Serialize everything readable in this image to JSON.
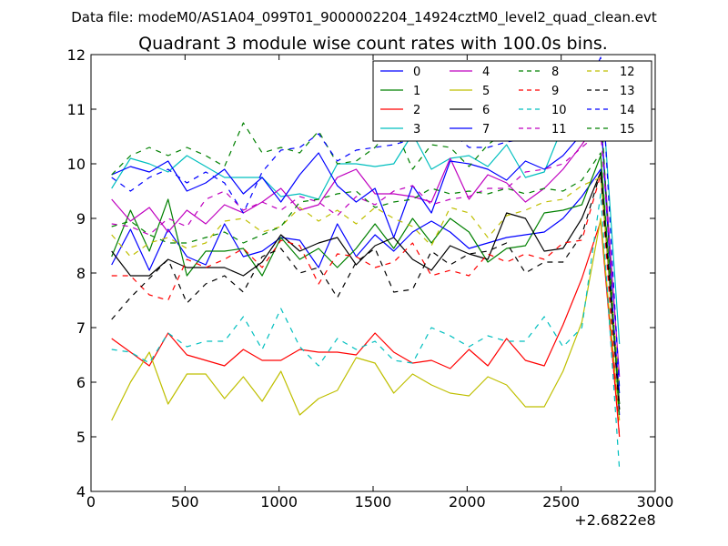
{
  "chart_data": {
    "type": "line",
    "suptitle": "Data file: modeM0/AS1A04_099T01_9000002204_14924cztM0_level2_quad_clean.evt",
    "title": "Quadrant 3 module wise count rates with 100.0s bins.",
    "xlabel": "",
    "ylabel": "",
    "x_offset_label": "+2.6822e8",
    "xlim": [
      0,
      3000
    ],
    "ylim": [
      4,
      12
    ],
    "xticks": [
      0,
      500,
      1000,
      1500,
      2000,
      2500,
      3000
    ],
    "yticks": [
      4,
      5,
      6,
      7,
      8,
      9,
      10,
      11,
      12
    ],
    "grid": false,
    "legend_position": "top-right",
    "x": [
      110,
      210,
      310,
      410,
      510,
      610,
      710,
      810,
      910,
      1010,
      1110,
      1210,
      1310,
      1410,
      1510,
      1610,
      1710,
      1810,
      1910,
      2010,
      2110,
      2210,
      2310,
      2410,
      2510,
      2610,
      2710,
      2810
    ],
    "series": [
      {
        "name": "0",
        "color": "#0000ff",
        "dash": "solid",
        "values": [
          8.15,
          8.8,
          8.05,
          8.8,
          8.3,
          8.15,
          8.9,
          8.3,
          8.4,
          8.65,
          8.6,
          8.1,
          8.9,
          8.3,
          8.7,
          8.4,
          8.75,
          8.95,
          8.75,
          8.45,
          8.55,
          8.65,
          8.7,
          8.75,
          9.0,
          9.4,
          9.9,
          5.8
        ]
      },
      {
        "name": "1",
        "color": "#008000",
        "dash": "solid",
        "values": [
          8.3,
          9.15,
          8.4,
          9.35,
          7.95,
          8.4,
          8.4,
          8.45,
          7.95,
          8.65,
          8.25,
          8.45,
          8.1,
          8.45,
          8.9,
          8.45,
          9.0,
          8.55,
          9.0,
          8.75,
          8.2,
          8.45,
          8.5,
          9.1,
          9.15,
          9.25,
          10.15,
          5.5
        ]
      },
      {
        "name": "2",
        "color": "#ff0000",
        "dash": "solid",
        "values": [
          6.8,
          6.55,
          6.3,
          6.9,
          6.5,
          6.4,
          6.3,
          6.6,
          6.4,
          6.4,
          6.6,
          6.55,
          6.55,
          6.5,
          6.9,
          6.55,
          6.35,
          6.4,
          6.25,
          6.6,
          6.3,
          6.8,
          6.4,
          6.3,
          7.05,
          7.9,
          8.95,
          5.0
        ]
      },
      {
        "name": "3",
        "color": "#00bfbf",
        "dash": "solid",
        "values": [
          9.55,
          10.1,
          10.0,
          9.85,
          10.15,
          9.95,
          9.75,
          9.75,
          9.75,
          9.4,
          9.45,
          9.35,
          10.0,
          10.0,
          9.95,
          10.0,
          10.55,
          9.9,
          10.1,
          10.15,
          9.95,
          10.35,
          9.75,
          9.85,
          10.7,
          10.55,
          11.7,
          6.7
        ]
      },
      {
        "name": "4",
        "color": "#bf00bf",
        "dash": "solid",
        "values": [
          9.35,
          8.95,
          9.2,
          8.75,
          9.15,
          8.9,
          9.25,
          9.1,
          9.3,
          9.55,
          9.15,
          9.25,
          9.75,
          9.9,
          9.45,
          9.45,
          9.4,
          9.3,
          10.1,
          9.35,
          9.8,
          9.65,
          9.3,
          9.55,
          9.9,
          10.35,
          10.85,
          6.1
        ]
      },
      {
        "name": "5",
        "color": "#bfbf00",
        "dash": "solid",
        "values": [
          5.3,
          6.0,
          6.55,
          5.6,
          6.15,
          6.15,
          5.7,
          6.1,
          5.65,
          6.2,
          5.4,
          5.7,
          5.85,
          6.45,
          6.35,
          5.8,
          6.15,
          5.95,
          5.8,
          5.75,
          6.1,
          5.95,
          5.55,
          5.55,
          6.2,
          7.1,
          9.0,
          5.3
        ]
      },
      {
        "name": "6",
        "color": "#000000",
        "dash": "solid",
        "values": [
          8.4,
          7.95,
          7.95,
          8.25,
          8.1,
          8.1,
          8.1,
          7.95,
          8.2,
          8.7,
          8.4,
          8.55,
          8.65,
          8.15,
          8.5,
          8.65,
          8.25,
          8.05,
          8.5,
          8.35,
          8.25,
          9.1,
          9.0,
          8.4,
          8.45,
          9.0,
          9.85,
          5.6
        ]
      },
      {
        "name": "7",
        "color": "#0000ff",
        "dash": "solid",
        "values": [
          9.8,
          9.95,
          9.85,
          10.05,
          9.5,
          9.65,
          9.9,
          9.45,
          9.75,
          9.3,
          9.8,
          10.2,
          9.6,
          9.3,
          9.55,
          8.65,
          9.6,
          9.1,
          10.05,
          10.0,
          9.9,
          9.7,
          10.05,
          9.9,
          10.15,
          10.55,
          10.9,
          5.4
        ]
      },
      {
        "name": "8",
        "color": "#008000",
        "dash": "dashed",
        "values": [
          9.8,
          10.15,
          10.3,
          10.15,
          10.3,
          10.15,
          9.95,
          10.75,
          10.2,
          10.3,
          10.2,
          10.6,
          10.0,
          10.05,
          10.3,
          10.7,
          9.9,
          10.35,
          10.3,
          9.95,
          10.35,
          10.6,
          10.4,
          10.75,
          10.75,
          10.95,
          11.1,
          5.3
        ]
      },
      {
        "name": "9",
        "color": "#ff0000",
        "dash": "dashed",
        "values": [
          7.95,
          7.95,
          7.6,
          7.5,
          8.25,
          8.1,
          8.25,
          8.45,
          8.1,
          8.6,
          8.5,
          7.8,
          8.35,
          8.3,
          8.1,
          8.2,
          8.55,
          7.95,
          8.05,
          7.95,
          8.35,
          8.2,
          8.35,
          8.25,
          8.55,
          8.6,
          9.8,
          5.0
        ]
      },
      {
        "name": "10",
        "color": "#00bfbf",
        "dash": "dashed",
        "values": [
          6.6,
          6.55,
          6.35,
          6.9,
          6.65,
          6.75,
          6.75,
          7.2,
          6.6,
          7.35,
          6.65,
          6.3,
          6.8,
          6.6,
          6.75,
          6.4,
          6.35,
          7.0,
          6.85,
          6.65,
          6.85,
          6.75,
          6.75,
          7.2,
          6.65,
          7.0,
          9.45,
          4.4
        ]
      },
      {
        "name": "11",
        "color": "#bf00bf",
        "dash": "dashed",
        "values": [
          8.9,
          8.85,
          8.7,
          9.0,
          8.85,
          9.35,
          9.5,
          9.15,
          9.3,
          9.15,
          9.4,
          9.3,
          9.05,
          9.4,
          9.25,
          9.5,
          9.6,
          9.25,
          9.35,
          9.4,
          9.55,
          9.55,
          9.85,
          9.9,
          10.0,
          10.3,
          10.6,
          6.1
        ]
      },
      {
        "name": "12",
        "color": "#bfbf00",
        "dash": "dashed",
        "values": [
          8.7,
          8.3,
          8.55,
          8.65,
          8.45,
          8.55,
          8.95,
          9.0,
          8.75,
          8.85,
          9.2,
          8.95,
          9.15,
          8.9,
          9.2,
          9.0,
          8.85,
          8.5,
          9.2,
          9.1,
          8.65,
          9.05,
          9.15,
          9.3,
          9.35,
          9.6,
          9.75,
          5.9
        ]
      },
      {
        "name": "13",
        "color": "#000000",
        "dash": "dashed",
        "values": [
          7.15,
          7.55,
          7.9,
          8.25,
          7.45,
          7.8,
          7.95,
          7.65,
          8.3,
          8.45,
          8.0,
          8.1,
          7.55,
          8.2,
          8.45,
          7.65,
          7.7,
          8.4,
          8.15,
          8.35,
          8.4,
          8.55,
          8.0,
          8.2,
          8.2,
          8.7,
          9.85,
          5.5
        ]
      },
      {
        "name": "14",
        "color": "#0000ff",
        "dash": "dashed",
        "values": [
          9.75,
          9.5,
          9.75,
          9.9,
          9.65,
          9.85,
          9.65,
          9.1,
          9.85,
          10.25,
          10.3,
          10.55,
          10.05,
          10.25,
          10.3,
          10.35,
          10.45,
          10.45,
          10.6,
          10.3,
          10.3,
          10.4,
          10.45,
          10.8,
          10.85,
          11.2,
          11.95,
          5.9
        ]
      },
      {
        "name": "15",
        "color": "#008000",
        "dash": "dashed",
        "values": [
          8.85,
          8.95,
          8.7,
          8.55,
          8.55,
          8.65,
          8.75,
          8.55,
          8.7,
          8.85,
          9.3,
          9.35,
          9.45,
          9.5,
          9.2,
          9.3,
          9.35,
          9.55,
          9.45,
          9.5,
          9.45,
          9.55,
          9.45,
          9.55,
          9.5,
          9.7,
          10.2,
          5.6
        ]
      }
    ]
  }
}
